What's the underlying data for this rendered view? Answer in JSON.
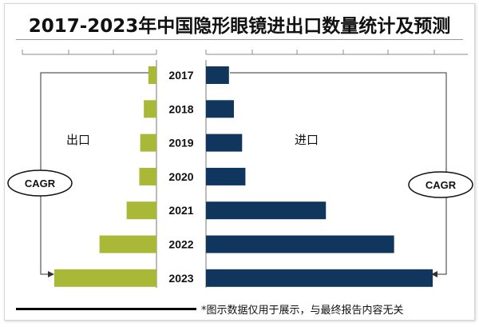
{
  "chart_data": {
    "type": "bar",
    "title": "2017-2023年中国隐形眼镜进出口数量统计及预测",
    "categories": [
      "2017",
      "2018",
      "2019",
      "2020",
      "2021",
      "2022",
      "2023"
    ],
    "series": [
      {
        "name": "出口",
        "values": [
          0.9,
          1.4,
          1.8,
          1.9,
          3.3,
          6.3,
          11.3
        ],
        "color": "#a9b937"
      },
      {
        "name": "进口",
        "values": [
          2.8,
          3.4,
          4.4,
          4.8,
          14.6,
          22.9,
          27.6
        ],
        "color": "#10365e"
      }
    ],
    "left_label": "出口",
    "right_label": "进口",
    "cagr_label": "CAGR",
    "footnote": "*图示数据仅用于展示，与最终报告内容无关",
    "export_max": 11.3,
    "import_max": 27.6
  }
}
